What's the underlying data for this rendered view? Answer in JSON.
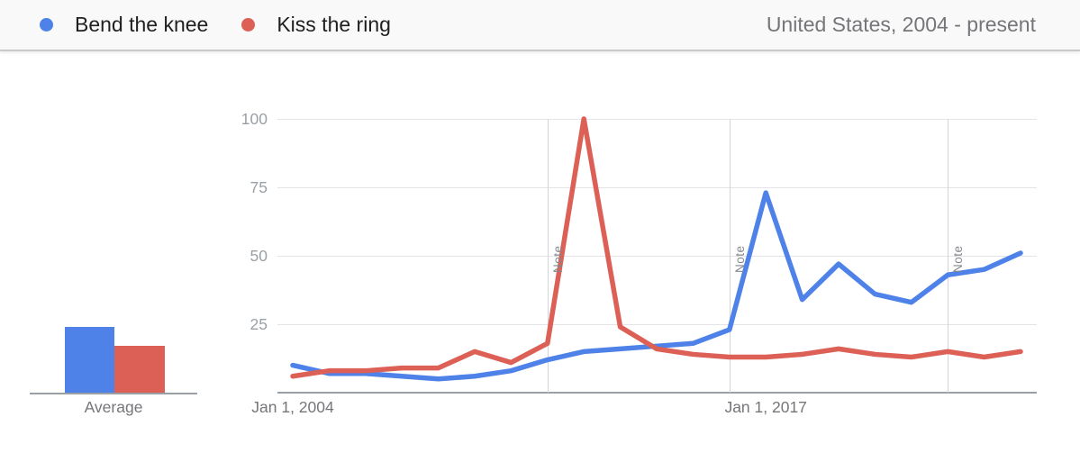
{
  "header": {
    "legend": [
      {
        "label": "Bend the knee",
        "color": "#4e82e8",
        "icon": "circle-marker"
      },
      {
        "label": "Kiss the ring",
        "color": "#dd6057",
        "icon": "circle-marker"
      }
    ],
    "scope": "United States, 2004 - present"
  },
  "average_chart": {
    "type": "bar",
    "label": "Average",
    "series": [
      {
        "name": "Bend the knee",
        "value": 24,
        "color": "#4e82e8"
      },
      {
        "name": "Kiss the ring",
        "value": 17,
        "color": "#dd6057"
      }
    ],
    "ylim": [
      0,
      100
    ]
  },
  "chart_data": {
    "type": "line",
    "x": [
      2004,
      2005,
      2006,
      2007,
      2008,
      2009,
      2010,
      2011,
      2012,
      2013,
      2014,
      2015,
      2016,
      2017,
      2018,
      2019,
      2020,
      2021,
      2022,
      2023,
      2024
    ],
    "series": [
      {
        "name": "Bend the knee",
        "color": "#4e82e8",
        "values": [
          10,
          7,
          7,
          6,
          5,
          6,
          8,
          12,
          15,
          16,
          17,
          18,
          23,
          73,
          34,
          47,
          36,
          33,
          43,
          45,
          51
        ]
      },
      {
        "name": "Kiss the ring",
        "color": "#dd6057",
        "values": [
          6,
          8,
          8,
          9,
          9,
          15,
          11,
          18,
          100,
          24,
          16,
          14,
          13,
          13,
          14,
          16,
          14,
          13,
          15,
          13,
          15
        ]
      }
    ],
    "ylim": [
      0,
      100
    ],
    "yticks": [
      25,
      50,
      75,
      100
    ],
    "xtick_labels": [
      {
        "label": "Jan 1, 2004",
        "year": 2004
      },
      {
        "label": "Jan 1, 2017",
        "year": 2017
      }
    ],
    "notes": [
      {
        "label": "Note",
        "year": 2011
      },
      {
        "label": "Note",
        "year": 2016
      },
      {
        "label": "Note",
        "year": 2022
      }
    ],
    "grid": true,
    "legend_position": "top-left-header"
  }
}
